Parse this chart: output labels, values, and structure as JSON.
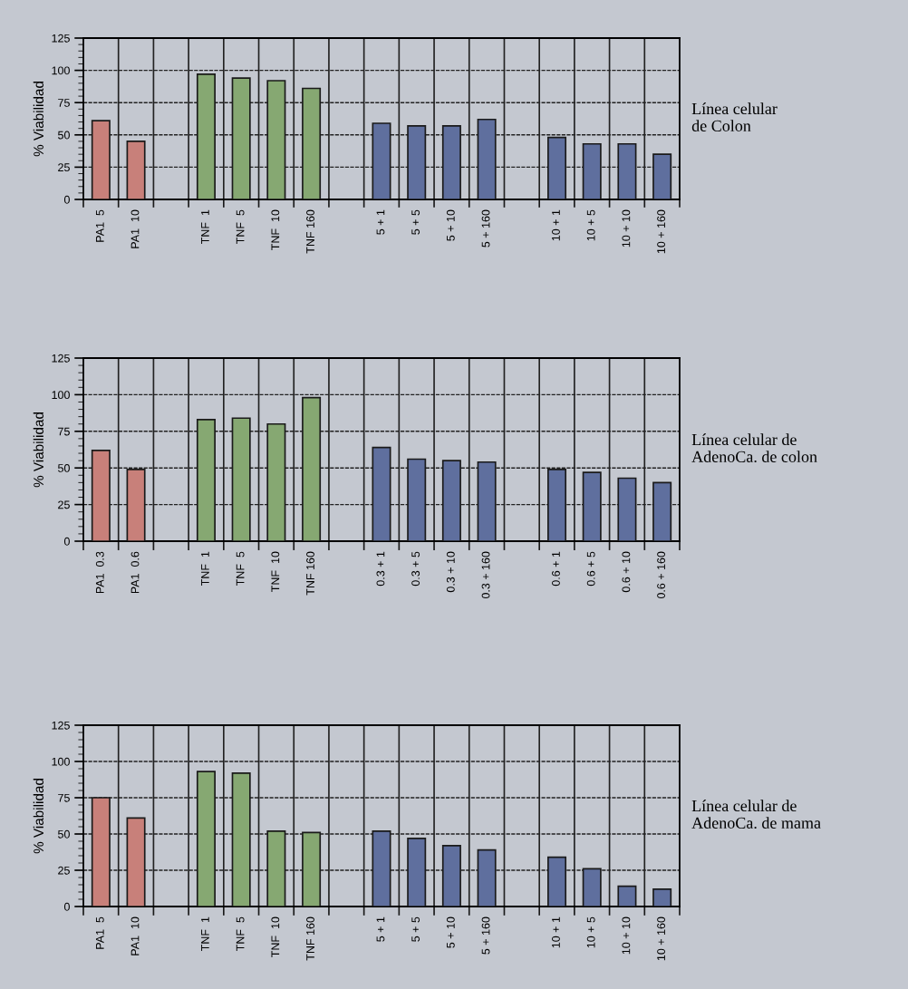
{
  "chart_data": [
    {
      "type": "bar",
      "ylabel": "% Viabilidad",
      "categories": [
        "PA1  5",
        "PA1  10",
        null,
        "TNF  1",
        "TNF  5",
        "TNF  10",
        "TNF 160",
        null,
        "5 + 1",
        "5 + 5",
        "5 + 10",
        "5 + 160",
        null,
        "10 + 1",
        "10 + 5",
        "10 + 10",
        "10 + 160"
      ],
      "values": [
        61,
        45,
        null,
        97,
        94,
        92,
        86,
        null,
        59,
        57,
        57,
        62,
        null,
        48,
        43,
        43,
        35
      ],
      "colors": [
        "#c8807a",
        "#c8807a",
        null,
        "#86a872",
        "#86a872",
        "#86a872",
        "#86a872",
        null,
        "#5f6f9e",
        "#5f6f9e",
        "#5f6f9e",
        "#5f6f9e",
        null,
        "#5f6f9e",
        "#5f6f9e",
        "#5f6f9e",
        "#5f6f9e"
      ],
      "ylim": [
        0,
        125
      ],
      "yticks": [
        0,
        25,
        50,
        75,
        100,
        125
      ],
      "grid": true,
      "annotations": [
        "Línea celular\nde Colon"
      ]
    },
    {
      "type": "bar",
      "ylabel": "% Viabilidad",
      "categories": [
        "PA1  0.3",
        "PA1  0.6",
        null,
        "TNF  1",
        "TNF  5",
        "TNF  10",
        "TNF 160",
        null,
        "0.3 + 1",
        "0.3 + 5",
        "0.3 + 10",
        "0.3 + 160",
        null,
        "0.6 + 1",
        "0.6 + 5",
        "0.6 + 10",
        "0.6 + 160"
      ],
      "values": [
        62,
        49,
        null,
        83,
        84,
        80,
        98,
        null,
        64,
        56,
        55,
        54,
        null,
        49,
        47,
        43,
        40
      ],
      "colors": [
        "#c8807a",
        "#c8807a",
        null,
        "#86a872",
        "#86a872",
        "#86a872",
        "#86a872",
        null,
        "#5f6f9e",
        "#5f6f9e",
        "#5f6f9e",
        "#5f6f9e",
        null,
        "#5f6f9e",
        "#5f6f9e",
        "#5f6f9e",
        "#5f6f9e"
      ],
      "ylim": [
        0,
        125
      ],
      "yticks": [
        0,
        25,
        50,
        75,
        100,
        125
      ],
      "grid": true,
      "annotations": [
        "Línea celular de\nAdenoCa. de colon"
      ]
    },
    {
      "type": "bar",
      "ylabel": "% Viabilidad",
      "categories": [
        "PA1  5",
        "PA1  10",
        null,
        "TNF  1",
        "TNF  5",
        "TNF  10",
        "TNF 160",
        null,
        "5 + 1",
        "5 + 5",
        "5 + 10",
        "5 + 160",
        null,
        "10 + 1",
        "10 + 5",
        "10 + 10",
        "10 + 160"
      ],
      "values": [
        75,
        61,
        null,
        93,
        92,
        52,
        51,
        null,
        52,
        47,
        42,
        39,
        null,
        34,
        26,
        14,
        12
      ],
      "colors": [
        "#c8807a",
        "#c8807a",
        null,
        "#86a872",
        "#86a872",
        "#86a872",
        "#86a872",
        null,
        "#5f6f9e",
        "#5f6f9e",
        "#5f6f9e",
        "#5f6f9e",
        null,
        "#5f6f9e",
        "#5f6f9e",
        "#5f6f9e",
        "#5f6f9e"
      ],
      "ylim": [
        0,
        125
      ],
      "yticks": [
        0,
        25,
        50,
        75,
        100,
        125
      ],
      "grid": true,
      "annotations": [
        "Línea celular de\nAdenoCa. de mama"
      ]
    }
  ]
}
